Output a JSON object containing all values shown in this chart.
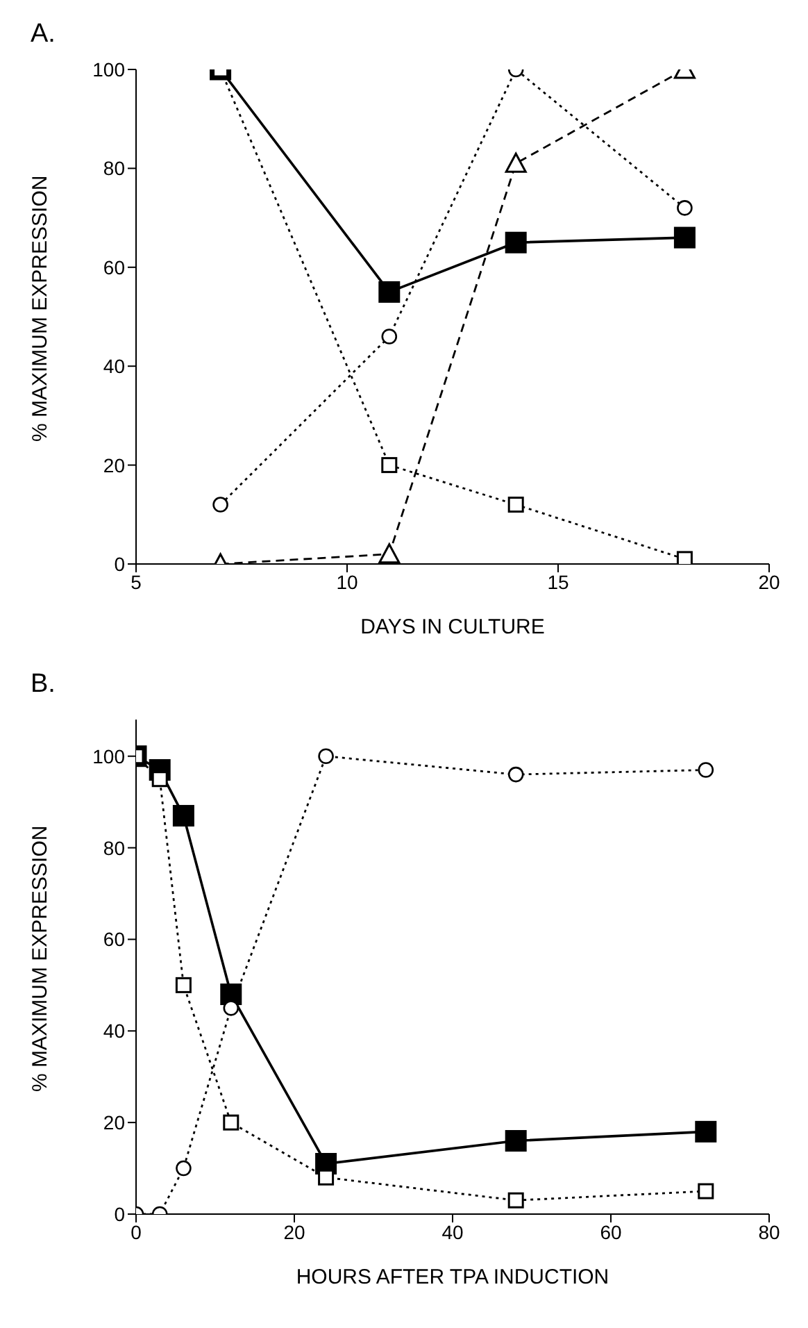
{
  "chart_data": [
    {
      "type": "line",
      "title": "A.",
      "xlabel": "DAYS IN CULTURE",
      "ylabel": "% MAXIMUM EXPRESSION",
      "x": [
        7,
        11,
        14,
        18
      ],
      "xlim": [
        5,
        20
      ],
      "xticks": [
        5,
        10,
        15,
        20
      ],
      "ylim": [
        0,
        100
      ],
      "yticks": [
        0,
        20,
        40,
        60,
        80,
        100
      ],
      "series": [
        {
          "color": "#000000",
          "marker": "square",
          "line_style": "solid",
          "values": [
            100,
            55,
            65,
            66
          ]
        },
        {
          "color": "#000000",
          "marker": "square",
          "line_style": "dotted",
          "values": [
            100,
            20,
            12,
            1
          ]
        },
        {
          "color": "#000000",
          "marker": "circle",
          "line_style": "dotted",
          "values": [
            12,
            46,
            100,
            72
          ]
        },
        {
          "color": "#000000",
          "marker": "triangle",
          "line_style": "dashed",
          "values": [
            0,
            2,
            81,
            100
          ]
        }
      ]
    },
    {
      "type": "line",
      "title": "B.",
      "xlabel": "HOURS AFTER TPA INDUCTION",
      "ylabel": "% MAXIMUM EXPRESSION",
      "x": [
        0,
        3,
        6,
        12,
        24,
        48,
        72
      ],
      "xlim": [
        0,
        80
      ],
      "xticks": [
        0,
        20,
        40,
        60,
        80
      ],
      "ylim": [
        0,
        108
      ],
      "yticks": [
        0,
        20,
        40,
        60,
        80,
        100
      ],
      "series": [
        {
          "color": "#000000",
          "marker": "square",
          "line_style": "solid",
          "values": [
            100,
            97,
            87,
            48,
            11,
            16,
            18
          ]
        },
        {
          "color": "#000000",
          "marker": "square",
          "line_style": "dotted",
          "values": [
            100,
            95,
            50,
            20,
            8,
            3,
            5
          ]
        },
        {
          "color": "#000000",
          "marker": "circle",
          "line_style": "dotted",
          "values": [
            0,
            0,
            10,
            45,
            100,
            96,
            97
          ]
        }
      ]
    }
  ]
}
